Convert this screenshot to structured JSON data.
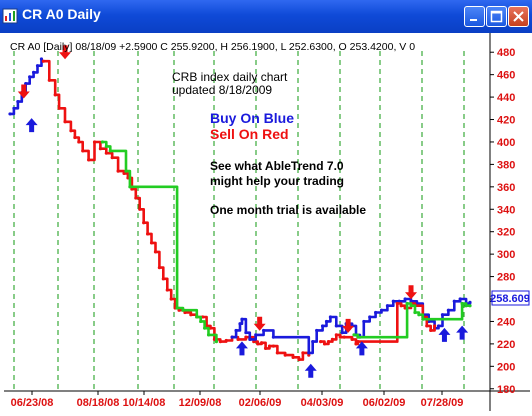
{
  "window": {
    "title": "CR A0 Daily"
  },
  "header": {
    "info_line": "CR A0 [Daily] 08/18/09 +2.5900 C 255.9200, H 256.1900, L 252.6300, O 253.4200, V 0"
  },
  "annotations": {
    "title_line1": "CRB index daily chart",
    "title_line2": "updated 8/18/2009",
    "buy_text": "Buy On Blue",
    "sell_text": "Sell On Red",
    "promo_line1": "See what AbleTrend 7.0",
    "promo_line2": "might help your trading",
    "trial_text": "One month trial is available"
  },
  "colors": {
    "buy": "#1a1adc",
    "sell": "#ee1111",
    "neutral": "#22cc22",
    "axis_text": "#dd1111",
    "grid": "#119911"
  },
  "chart_data": {
    "type": "line",
    "title": "",
    "xlabel": "",
    "ylabel": "",
    "x_tick_labels": [
      "06/23/08",
      "08/18/08",
      "10/14/08",
      "12/09/08",
      "02/06/09",
      "04/03/09",
      "06/02/09",
      "07/28/09"
    ],
    "y_ticks": [
      180,
      200,
      220,
      240,
      260,
      280,
      300,
      320,
      340,
      360,
      380,
      400,
      420,
      440,
      460,
      480
    ],
    "ylim": [
      178,
      490
    ],
    "last_value_label": "258.609",
    "grid": "vertical dashed",
    "series": [
      {
        "color": "buy",
        "points": [
          [
            0,
            425
          ],
          [
            4,
            430
          ],
          [
            8,
            436
          ],
          [
            12,
            444
          ],
          [
            16,
            452
          ],
          [
            20,
            458
          ],
          [
            24,
            462
          ],
          [
            28,
            468
          ],
          [
            32,
            474
          ]
        ]
      },
      {
        "color": "sell",
        "points": [
          [
            34,
            472
          ],
          [
            40,
            455
          ],
          [
            46,
            442
          ],
          [
            50,
            430
          ],
          [
            56,
            418
          ],
          [
            62,
            410
          ],
          [
            66,
            404
          ],
          [
            70,
            400
          ],
          [
            74,
            392
          ],
          [
            80,
            384
          ],
          [
            86,
            400
          ],
          [
            92,
            394
          ],
          [
            98,
            390
          ],
          [
            104,
            386
          ],
          [
            110,
            374
          ],
          [
            116,
            372
          ],
          [
            120,
            368
          ],
          [
            124,
            358
          ],
          [
            128,
            350
          ],
          [
            132,
            340
          ],
          [
            136,
            328
          ],
          [
            140,
            318
          ],
          [
            144,
            310
          ],
          [
            148,
            302
          ],
          [
            152,
            288
          ],
          [
            156,
            278
          ],
          [
            160,
            268
          ],
          [
            164,
            260
          ],
          [
            168,
            252
          ],
          [
            172,
            250
          ],
          [
            178,
            248
          ],
          [
            184,
            246
          ],
          [
            190,
            244
          ],
          [
            196,
            244
          ],
          [
            200,
            236
          ],
          [
            204,
            234
          ],
          [
            208,
            224
          ],
          [
            214,
            222
          ],
          [
            220,
            223
          ],
          [
            226,
            226
          ],
          [
            232,
            224
          ],
          [
            240,
            226
          ],
          [
            248,
            222
          ],
          [
            252,
            220
          ],
          [
            256,
            221
          ],
          [
            260,
            216
          ],
          [
            264,
            218
          ],
          [
            268,
            218
          ],
          [
            272,
            212
          ],
          [
            280,
            210
          ],
          [
            288,
            208
          ],
          [
            294,
            206
          ],
          [
            298,
            212
          ],
          [
            304,
            210
          ]
        ]
      },
      {
        "color": "neutral",
        "points": [
          [
            94,
            400
          ],
          [
            98,
            396
          ],
          [
            102,
            392
          ],
          [
            118,
            374
          ],
          [
            122,
            360
          ],
          [
            170,
            252
          ],
          [
            176,
            250
          ],
          [
            190,
            244
          ],
          [
            194,
            240
          ],
          [
            198,
            234
          ],
          [
            202,
            228
          ],
          [
            210,
            222
          ]
        ]
      },
      {
        "color": "buy",
        "points": [
          [
            226,
            226
          ],
          [
            230,
            232
          ],
          [
            234,
            238
          ],
          [
            236,
            242
          ],
          [
            240,
            230
          ],
          [
            244,
            224
          ],
          [
            250,
            228
          ],
          [
            258,
            232
          ],
          [
            268,
            226
          ],
          [
            304,
            212
          ],
          [
            308,
            222
          ],
          [
            312,
            232
          ],
          [
            318,
            236
          ],
          [
            322,
            240
          ],
          [
            326,
            244
          ],
          [
            332,
            236
          ],
          [
            338,
            230
          ],
          [
            342,
            238
          ],
          [
            348,
            236
          ],
          [
            352,
            228
          ],
          [
            356,
            226
          ],
          [
            360,
            240
          ],
          [
            366,
            244
          ],
          [
            372,
            248
          ],
          [
            378,
            250
          ],
          [
            384,
            254
          ],
          [
            390,
            258
          ],
          [
            396,
            258
          ],
          [
            402,
            260
          ],
          [
            408,
            258
          ],
          [
            414,
            256
          ],
          [
            420,
            246
          ],
          [
            426,
            240
          ],
          [
            432,
            234
          ],
          [
            436,
            236
          ],
          [
            440,
            246
          ],
          [
            446,
            250
          ],
          [
            452,
            258
          ],
          [
            458,
            260
          ],
          [
            464,
            256
          ],
          [
            468,
            257
          ]
        ]
      },
      {
        "color": "sell",
        "points": [
          [
            316,
            222
          ],
          [
            320,
            220
          ],
          [
            324,
            222
          ],
          [
            328,
            224
          ],
          [
            332,
            228
          ],
          [
            336,
            226
          ],
          [
            340,
            226
          ],
          [
            348,
            224
          ],
          [
            352,
            220
          ],
          [
            354,
            222
          ],
          [
            394,
            256
          ],
          [
            398,
            254
          ],
          [
            402,
            252
          ],
          [
            408,
            256
          ],
          [
            412,
            254
          ],
          [
            420,
            244
          ],
          [
            424,
            236
          ],
          [
            428,
            232
          ],
          [
            432,
            236
          ]
        ]
      },
      {
        "color": "neutral",
        "points": [
          [
            350,
            228
          ],
          [
            354,
            226
          ],
          [
            404,
            256
          ],
          [
            408,
            254
          ],
          [
            412,
            248
          ],
          [
            416,
            246
          ],
          [
            420,
            242
          ],
          [
            460,
            256
          ],
          [
            464,
            254
          ],
          [
            468,
            254
          ]
        ]
      }
    ],
    "markers": [
      {
        "type": "buy_arrow",
        "x": 22,
        "y": 415
      },
      {
        "type": "sell_arrow",
        "x": 14,
        "y": 445
      },
      {
        "type": "sell_arrow",
        "x": 56,
        "y": 480
      },
      {
        "type": "buy_arrow",
        "x": 236,
        "y": 216
      },
      {
        "type": "sell_arrow",
        "x": 254,
        "y": 238
      },
      {
        "type": "buy_arrow",
        "x": 306,
        "y": 196
      },
      {
        "type": "sell_arrow",
        "x": 344,
        "y": 236
      },
      {
        "type": "buy_arrow",
        "x": 358,
        "y": 216
      },
      {
        "type": "sell_arrow",
        "x": 408,
        "y": 266
      },
      {
        "type": "buy_arrow",
        "x": 442,
        "y": 228
      },
      {
        "type": "buy_arrow",
        "x": 460,
        "y": 230
      }
    ]
  }
}
